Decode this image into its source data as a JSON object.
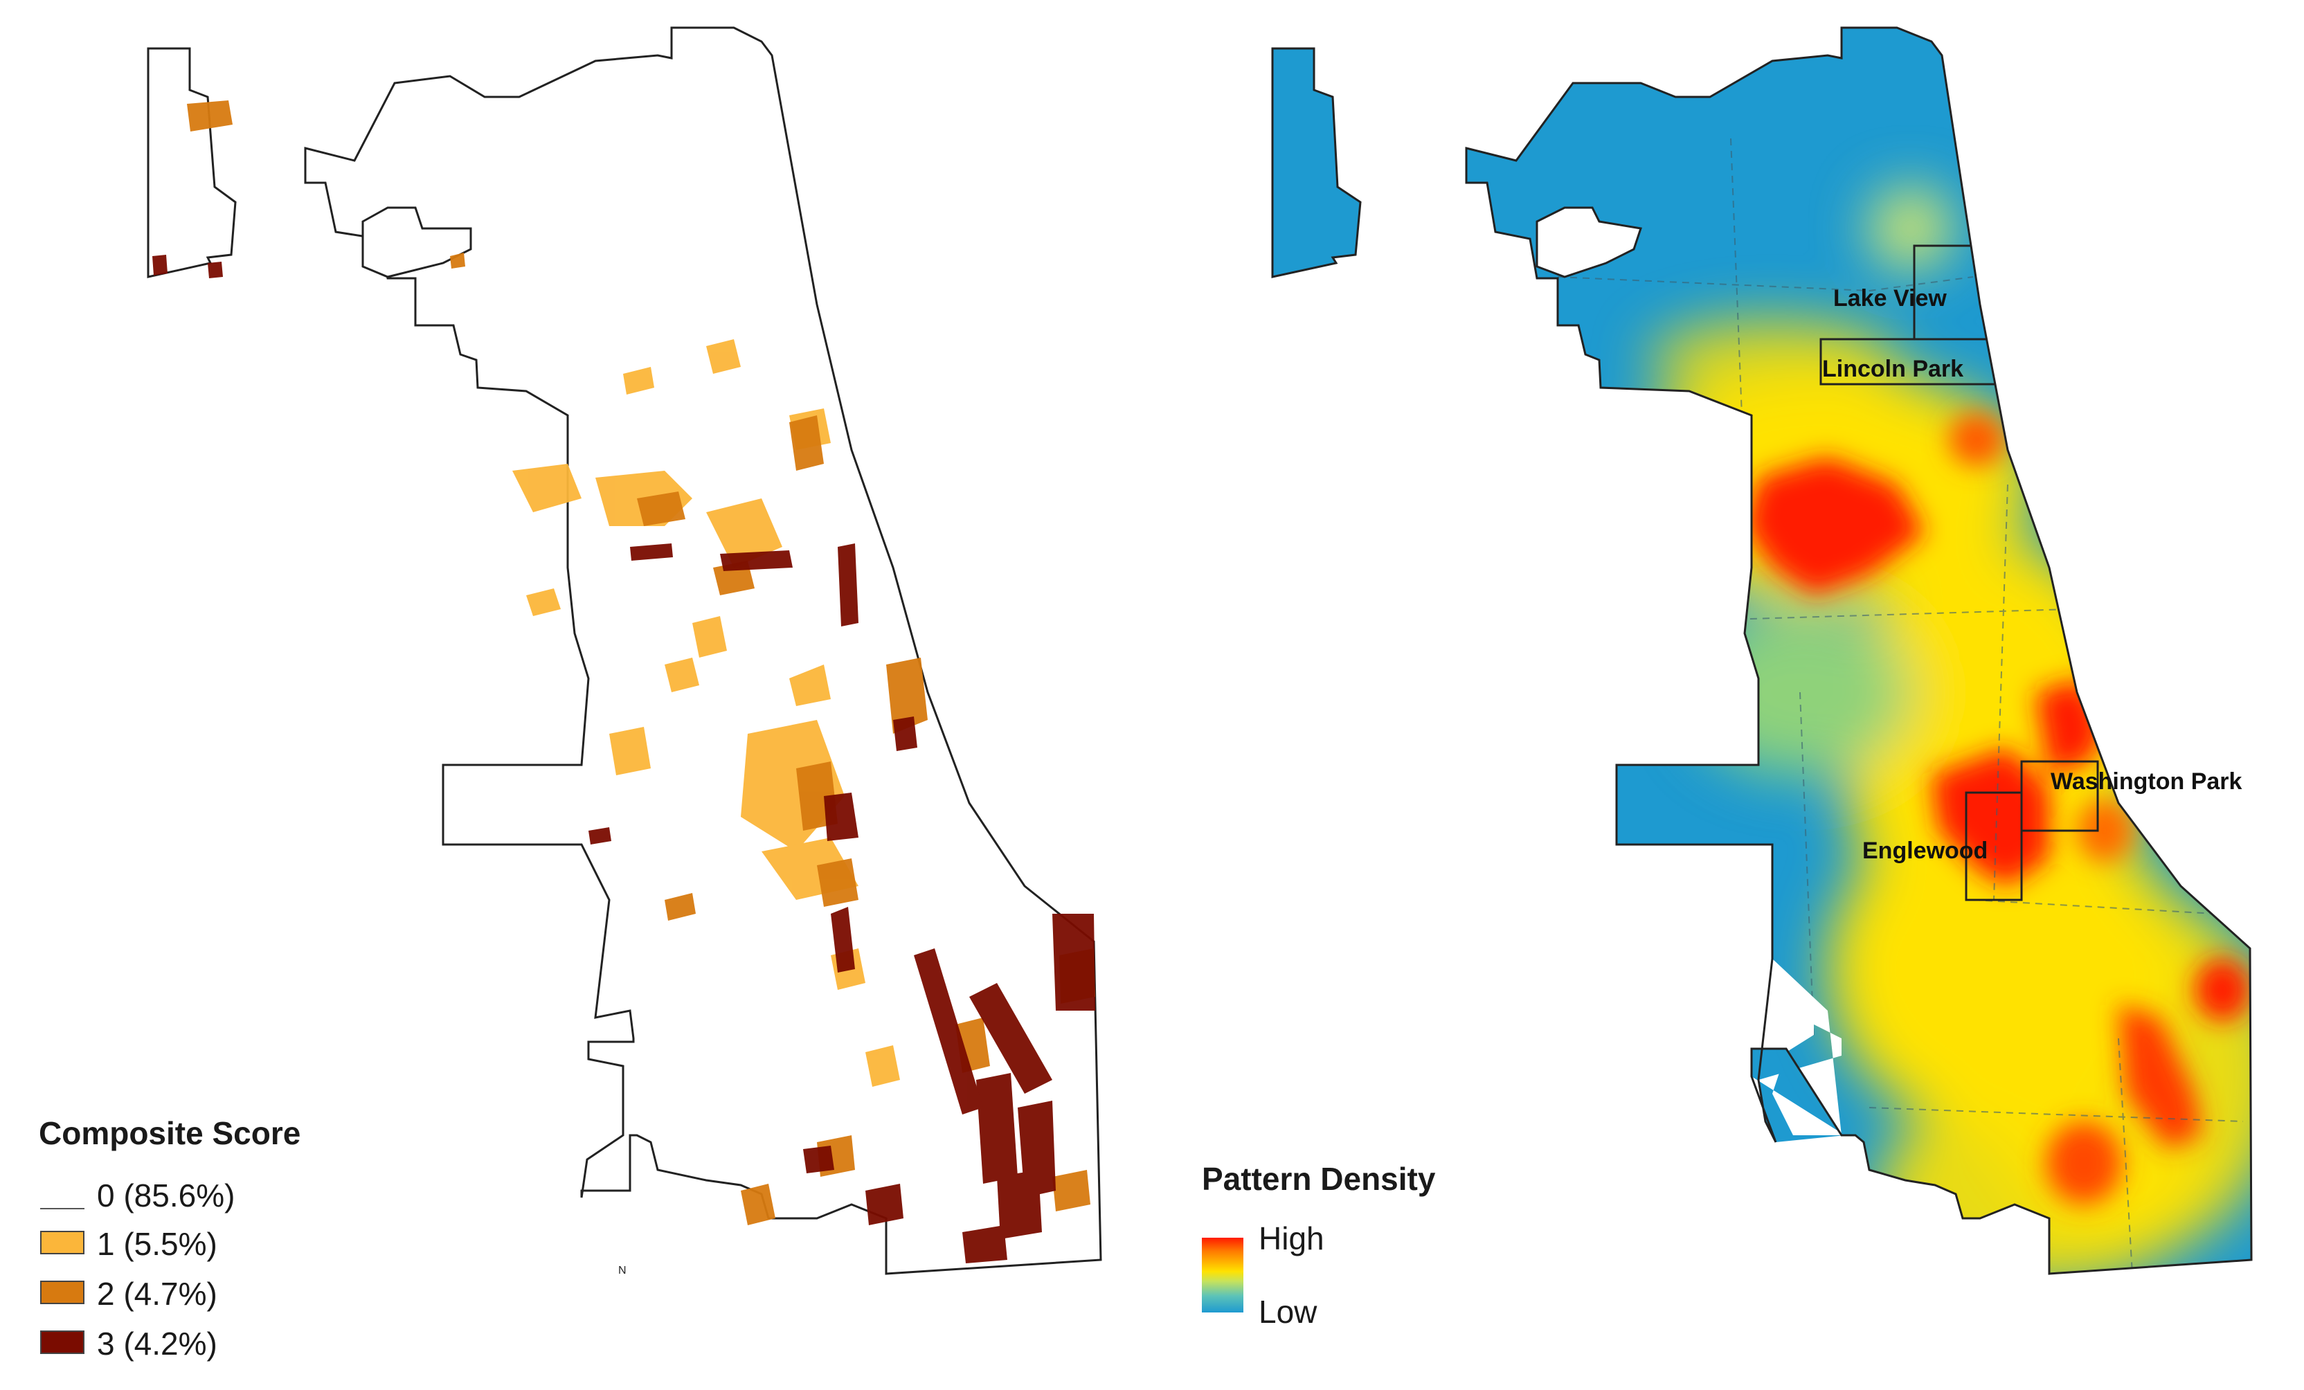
{
  "left_map": {
    "legend": {
      "title": "Composite Score",
      "items": [
        {
          "label": "0 (85.6%)",
          "color": "#ffffff"
        },
        {
          "label": "1 (5.5%)",
          "color": "#fbb63a"
        },
        {
          "label": "2 (4.7%)",
          "color": "#d77a10"
        },
        {
          "label": "3 (4.2%)",
          "color": "#7a0c00"
        }
      ]
    },
    "north_label": "N"
  },
  "right_map": {
    "legend": {
      "title": "Pattern Density",
      "high_label": "High",
      "low_label": "Low"
    },
    "neighborhoods": [
      "Lake View",
      "Lincoln Park",
      "Washington Park",
      "Englewood"
    ],
    "colors": {
      "low": "#1e9ad0",
      "mid": "#ffe200",
      "high": "#ff1a00"
    }
  }
}
